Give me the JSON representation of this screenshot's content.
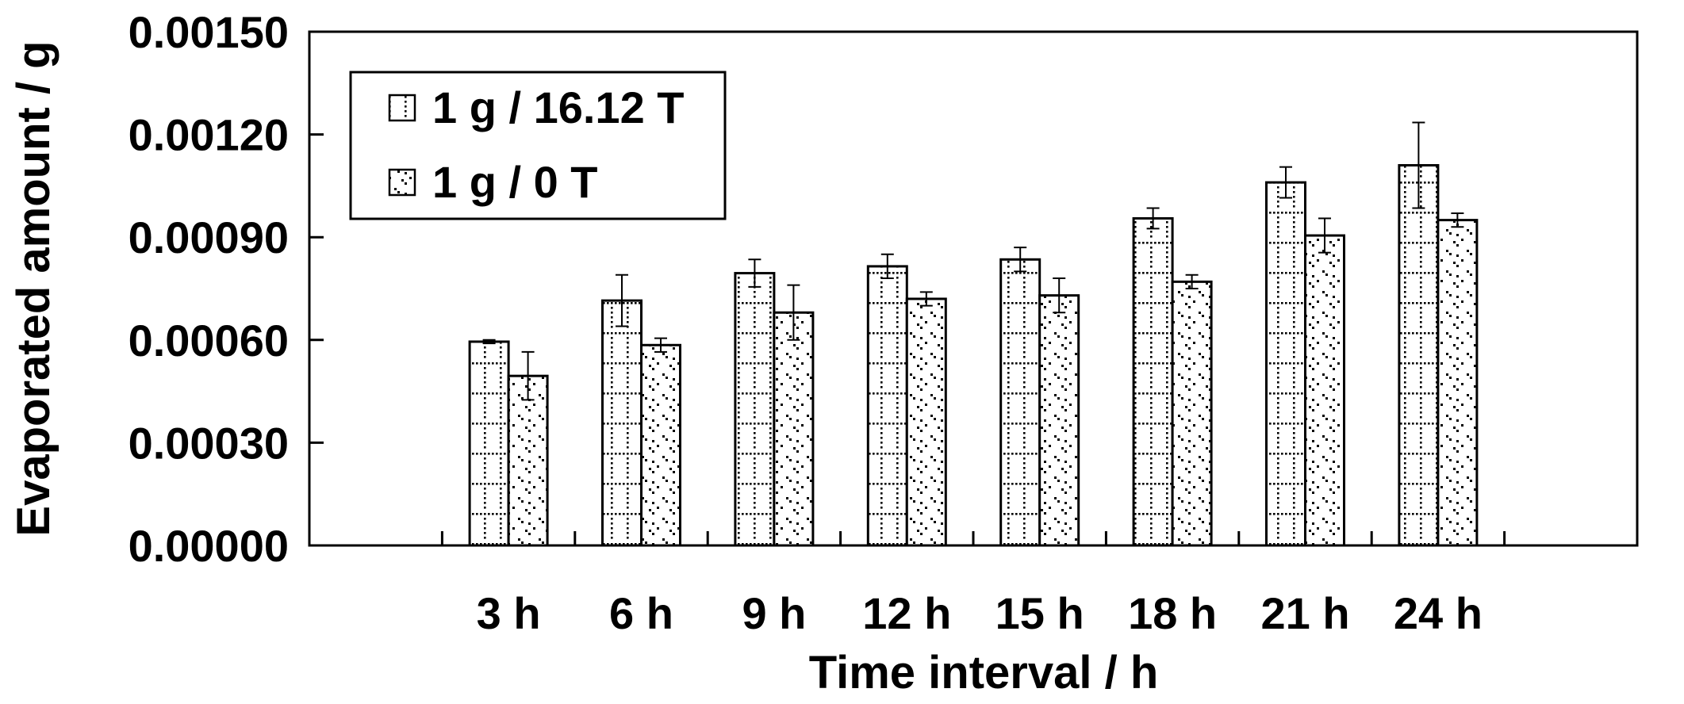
{
  "chart_data": {
    "type": "bar",
    "title": "",
    "xlabel": "Time interval / h",
    "ylabel": "Evaporated amount / g",
    "categories": [
      "3 h",
      "6 h",
      "9 h",
      "12 h",
      "15 h",
      "18 h",
      "21 h",
      "24 h"
    ],
    "ylim": [
      0,
      0.0015
    ],
    "yticks": [
      "0.00000",
      "0.00030",
      "0.00060",
      "0.00090",
      "0.00120",
      "0.00150"
    ],
    "ytick_values": [
      0,
      0.0003,
      0.0006,
      0.0009,
      0.0012,
      0.0015
    ],
    "grid": false,
    "legend_position": "top-left",
    "series": [
      {
        "name": "1 g / 16.12 T",
        "pattern": "dotted-grid",
        "values": [
          0.000595,
          0.000715,
          0.000795,
          0.000815,
          0.000835,
          0.000955,
          0.00106,
          0.00111
        ],
        "errors": [
          5e-06,
          7.5e-05,
          4e-05,
          3.5e-05,
          3.5e-05,
          3e-05,
          4.5e-05,
          0.000125
        ]
      },
      {
        "name": "1 g / 0 T",
        "pattern": "scattered-dots",
        "values": [
          0.000495,
          0.000585,
          0.00068,
          0.00072,
          0.00073,
          0.00077,
          0.000905,
          0.00095
        ],
        "errors": [
          7e-05,
          2e-05,
          8e-05,
          2e-05,
          5e-05,
          2e-05,
          5e-05,
          2e-05
        ]
      }
    ],
    "colors": {
      "axis": "#000000",
      "bar_fill": "#ffffff",
      "pattern": "#000000"
    }
  }
}
